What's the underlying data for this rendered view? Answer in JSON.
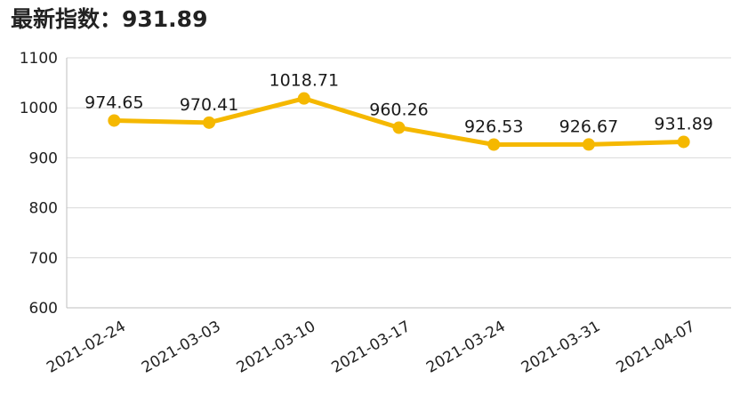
{
  "chart_data": {
    "type": "line",
    "title": "最新指数：931.89",
    "xlabel": "",
    "ylabel": "",
    "categories": [
      "2021-02-24",
      "2021-03-03",
      "2021-03-10",
      "2021-03-17",
      "2021-03-24",
      "2021-03-31",
      "2021-04-07"
    ],
    "series": [
      {
        "values": [
          974.65,
          970.41,
          1018.71,
          960.26,
          926.53,
          926.67,
          931.89
        ],
        "labels": [
          "974.65",
          "970.41",
          "1018.71",
          "960.26",
          "926.53",
          "926.67",
          "931.89"
        ],
        "color": "#F5B800"
      }
    ],
    "ylim": [
      600,
      1100
    ],
    "yticks": [
      600,
      700,
      800,
      900,
      1000,
      1100
    ],
    "grid": true,
    "legend": "none",
    "colors": {
      "line": "#F5B800",
      "grid": "#d9d9d9",
      "axis": "#bfbfbf",
      "text": "#222222"
    }
  }
}
